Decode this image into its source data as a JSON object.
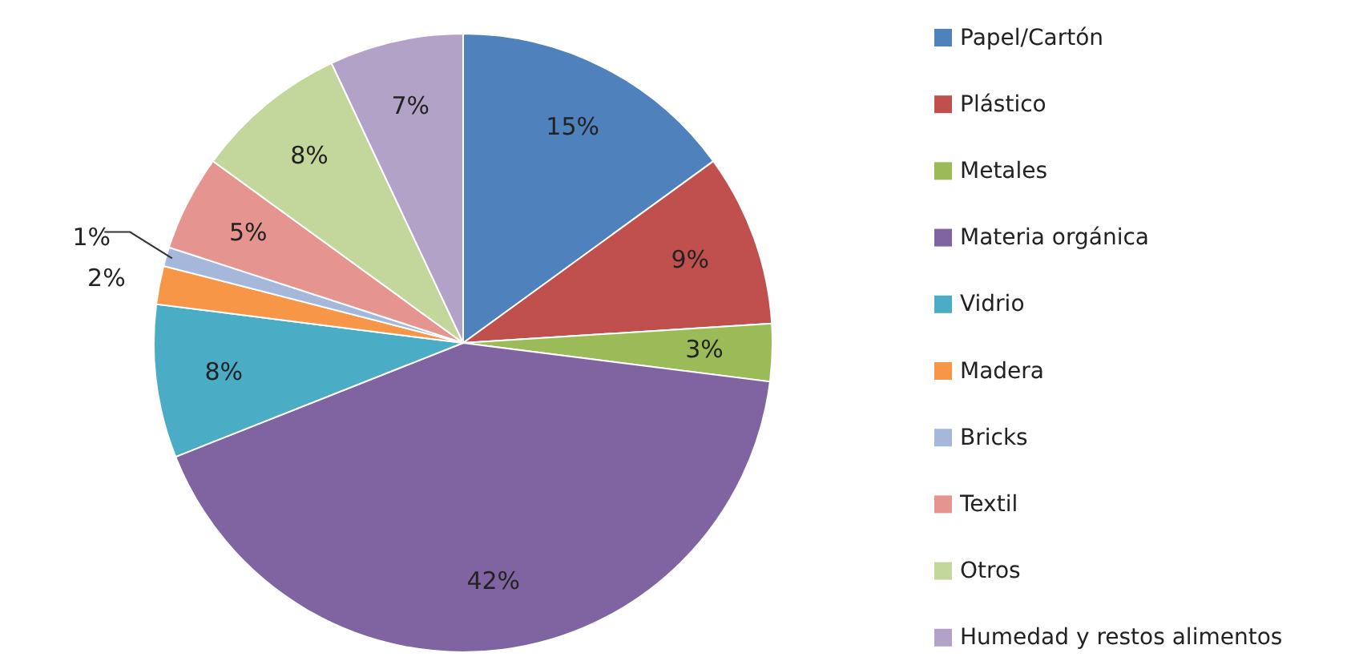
{
  "chart_data": {
    "type": "pie",
    "categories": [
      "Papel/Cartón",
      "Plástico",
      "Metales",
      "Materia orgánica",
      "Vidrio",
      "Madera",
      "Bricks",
      "Textil",
      "Otros",
      "Humedad y restos alimentos"
    ],
    "values": [
      15,
      9,
      3,
      42,
      8,
      2,
      1,
      5,
      8,
      7
    ],
    "colors": [
      "#4f81bd",
      "#c0504d",
      "#9bbb59",
      "#8064a2",
      "#4bacc6",
      "#f79646",
      "#a5b8dc",
      "#e6948f",
      "#c3d69b",
      "#b3a2c7"
    ],
    "value_labels": [
      "15%",
      "9%",
      "3%",
      "42%",
      "8%",
      "2%",
      "1%",
      "5%",
      "8%",
      "7%"
    ],
    "legend": "right"
  }
}
